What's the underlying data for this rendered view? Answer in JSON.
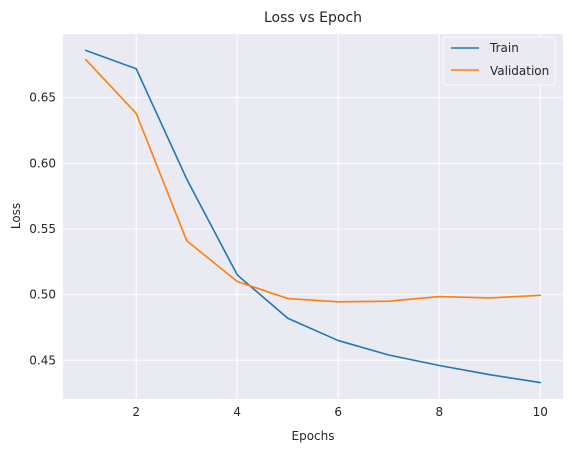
{
  "chart_data": {
    "type": "line",
    "title": "Loss vs Epoch",
    "xlabel": "Epochs",
    "ylabel": "Loss",
    "x": [
      1,
      2,
      3,
      4,
      5,
      6,
      7,
      8,
      9,
      10
    ],
    "xlim": [
      0.55,
      10.45
    ],
    "ylim": [
      0.4205,
      0.6985
    ],
    "xticks": [
      2,
      4,
      6,
      8,
      10
    ],
    "xtick_labels": [
      "2",
      "4",
      "6",
      "8",
      "10"
    ],
    "yticks": [
      0.45,
      0.5,
      0.55,
      0.6,
      0.65
    ],
    "ytick_labels": [
      "0.45",
      "0.50",
      "0.55",
      "0.60",
      "0.65"
    ],
    "grid": true,
    "legend_position": "top-right",
    "series": [
      {
        "name": "Train",
        "color": "#1f77b4",
        "values": [
          0.686,
          0.672,
          0.588,
          0.515,
          0.482,
          0.465,
          0.454,
          0.446,
          0.439,
          0.433
        ]
      },
      {
        "name": "Validation",
        "color": "#ff7f0e",
        "values": [
          0.679,
          0.638,
          0.541,
          0.51,
          0.497,
          0.4945,
          0.495,
          0.4985,
          0.4975,
          0.4995
        ]
      }
    ]
  }
}
